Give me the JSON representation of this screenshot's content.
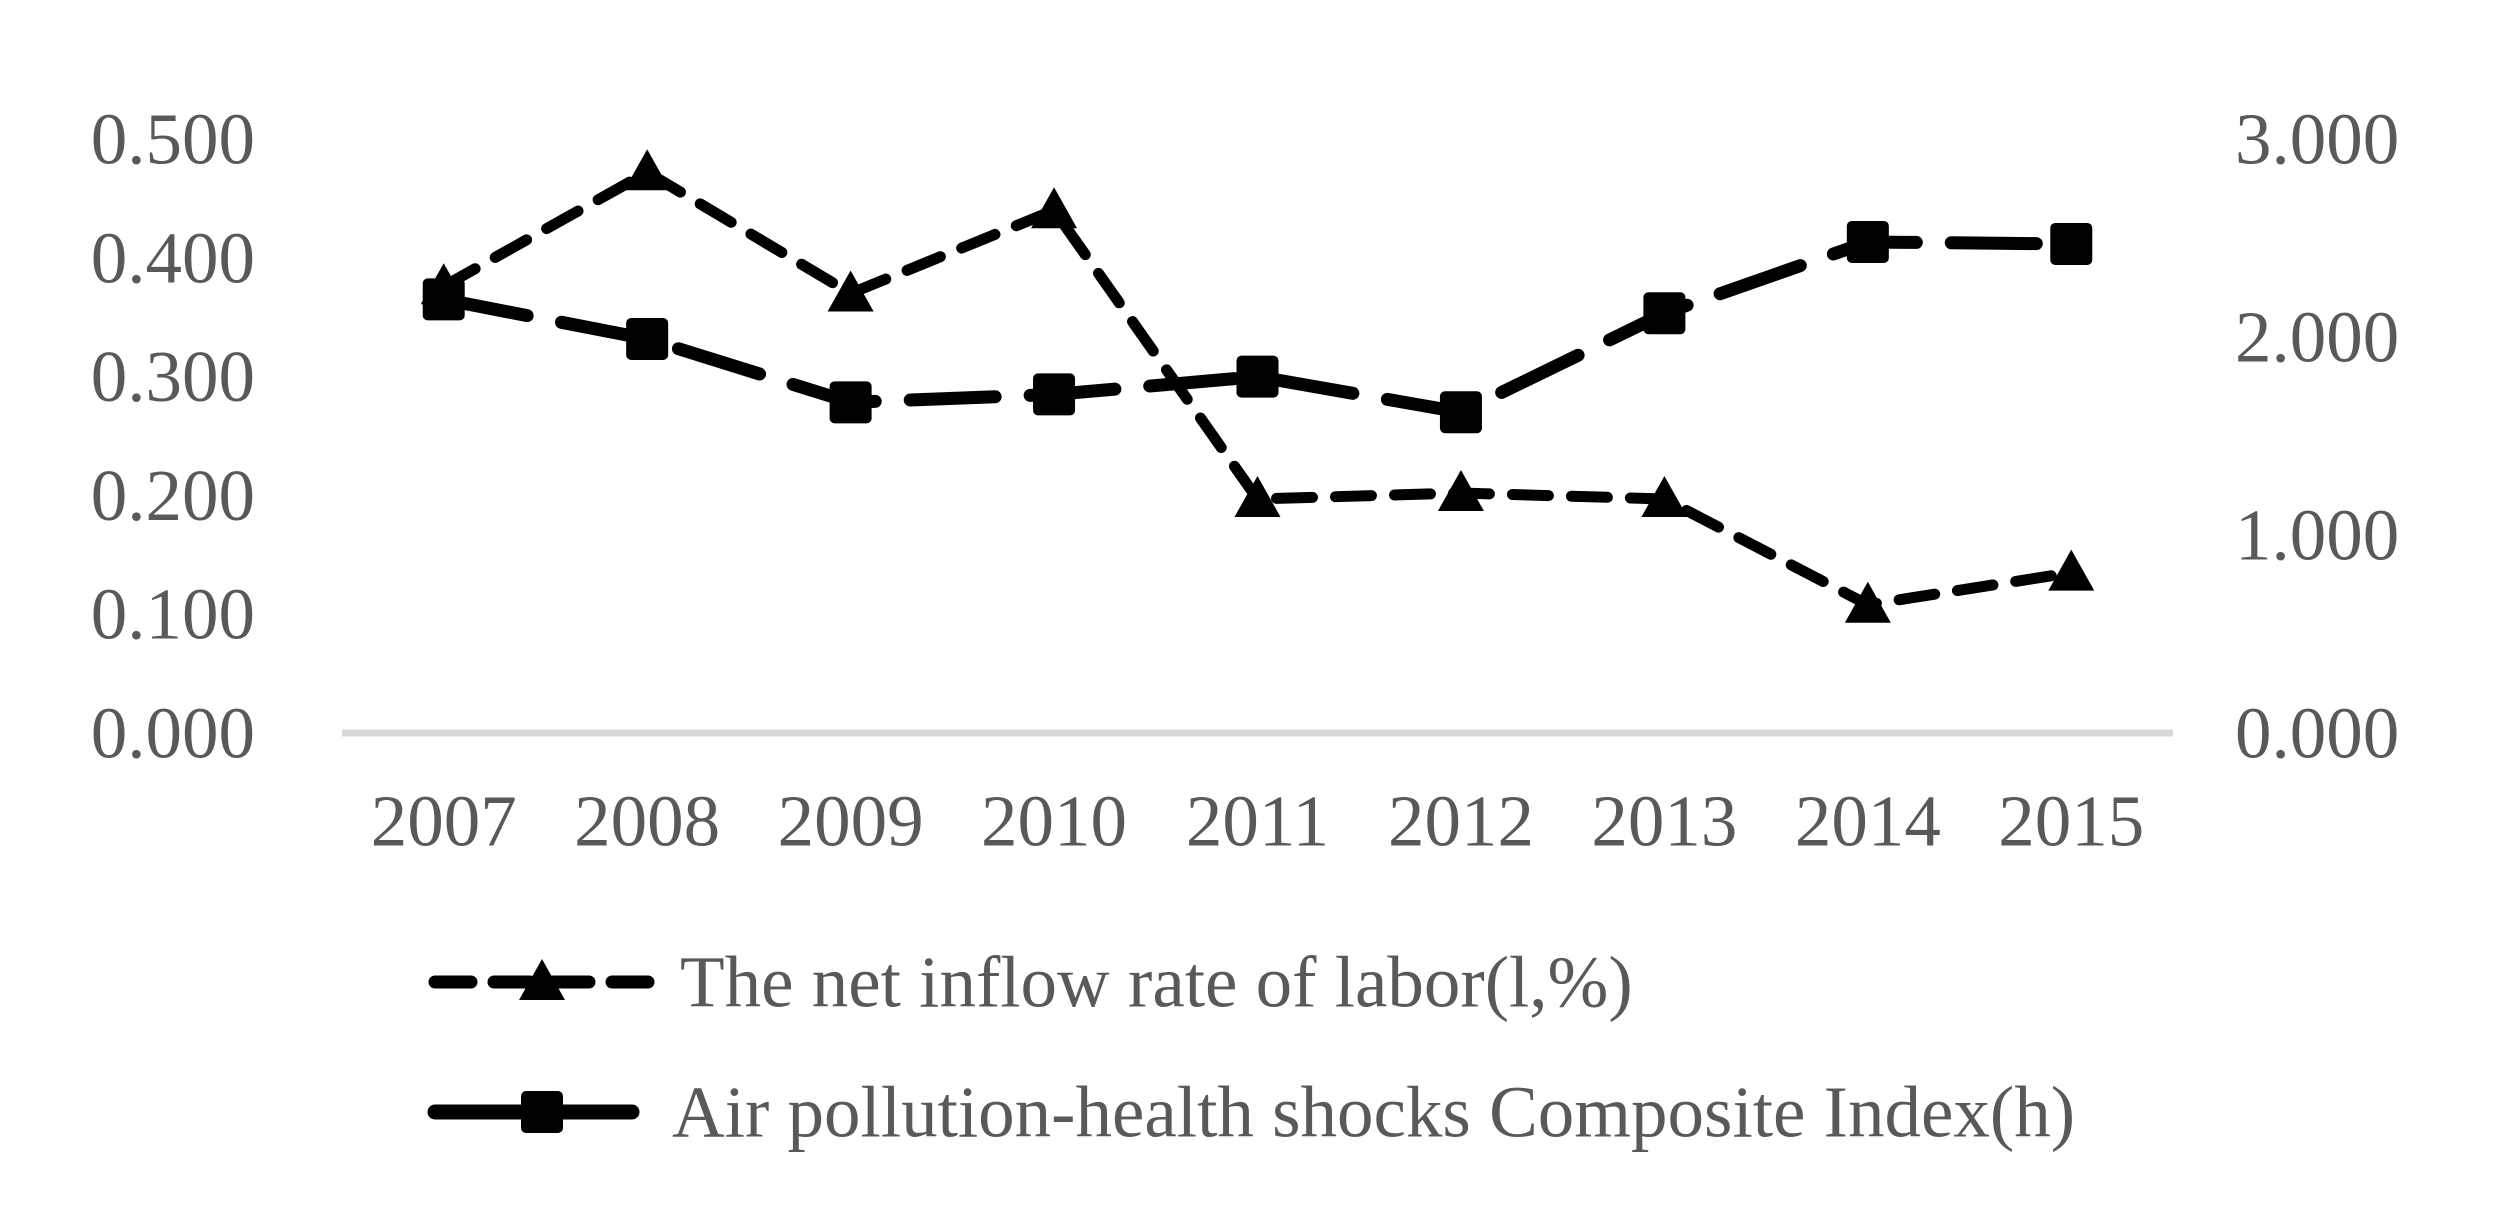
{
  "chart_data": {
    "type": "line",
    "title": "",
    "categories": [
      "2007",
      "2008",
      "2009",
      "2010",
      "2011",
      "2012",
      "2013",
      "2014",
      "2015"
    ],
    "series": [
      {
        "name": "The net inflow rate of labor(l,%)",
        "axis": "left",
        "marker": "triangle",
        "line_style": "short-dash",
        "values": [
          0.376,
          0.472,
          0.37,
          0.44,
          0.197,
          0.202,
          0.197,
          0.108,
          0.135
        ]
      },
      {
        "name": "Air pollution-health shocks Composite Index(h)",
        "axis": "right",
        "marker": "square",
        "line_style": "long-dash",
        "values": [
          2.19,
          1.99,
          1.67,
          1.71,
          1.8,
          1.62,
          2.12,
          2.48,
          2.47
        ]
      }
    ],
    "left_axis": {
      "min": 0,
      "max": 0.5,
      "tick_labels": [
        "0.000",
        "0.100",
        "0.200",
        "0.300",
        "0.400",
        "0.500"
      ]
    },
    "right_axis": {
      "min": 0,
      "max": 3,
      "tick_labels": [
        "0.000",
        "1.000",
        "2.000",
        "3.000"
      ]
    },
    "legend_position": "bottom-left",
    "grid": false,
    "colors": {
      "series_line": "#000000",
      "tick_text": "#595959",
      "legend_text": "#595959",
      "axis_line": "#d9d9d9",
      "background": "#ffffff"
    }
  }
}
